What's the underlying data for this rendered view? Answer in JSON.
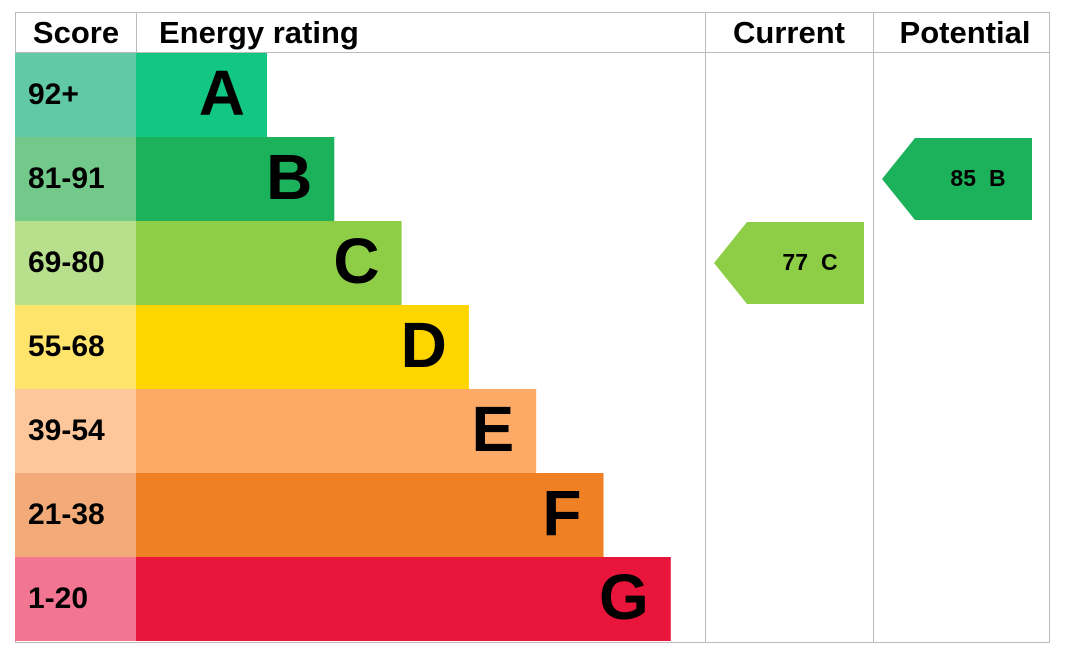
{
  "header": {
    "score": "Score",
    "rating": "Energy rating",
    "current": "Current",
    "potential": "Potential"
  },
  "bands": [
    {
      "score": "92+",
      "rating": "A",
      "color": "#12c781",
      "score_color": "#62c9a6"
    },
    {
      "score": "81-91",
      "rating": "B",
      "color": "#1cb15b",
      "score_color": "#72c98a"
    },
    {
      "score": "69-80",
      "rating": "C",
      "color": "#8dce46",
      "score_color": "#b8e08c"
    },
    {
      "score": "55-68",
      "rating": "D",
      "color": "#ffd500",
      "score_color": "#ffe46b"
    },
    {
      "score": "39-54",
      "rating": "E",
      "color": "#fcaa65",
      "score_color": "#fdc79b"
    },
    {
      "score": "21-38",
      "rating": "F",
      "color": "#ef8023",
      "score_color": "#f2ab78"
    },
    {
      "score": "1-20",
      "rating": "G",
      "color": "#e9153b",
      "score_color": "#f27592"
    }
  ],
  "current": {
    "value": 77,
    "rating": "C"
  },
  "potential": {
    "value": 85,
    "rating": "B"
  }
}
